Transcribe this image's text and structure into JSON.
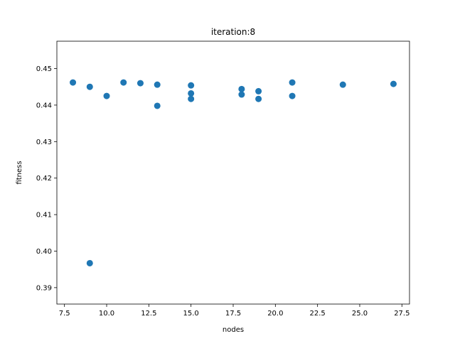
{
  "chart_data": {
    "type": "scatter",
    "title": "iteration:8",
    "xlabel": "nodes",
    "ylabel": "fitness",
    "xlim": [
      7.05,
      27.95
    ],
    "ylim": [
      0.3855,
      0.4575
    ],
    "xticks": [
      7.5,
      10.0,
      12.5,
      15.0,
      17.5,
      20.0,
      22.5,
      25.0,
      27.5
    ],
    "xtick_labels": [
      "7.5",
      "10.0",
      "12.5",
      "15.0",
      "17.5",
      "20.0",
      "22.5",
      "25.0",
      "27.5"
    ],
    "yticks": [
      0.39,
      0.4,
      0.41,
      0.42,
      0.43,
      0.44,
      0.45
    ],
    "ytick_labels": [
      "0.39",
      "0.40",
      "0.41",
      "0.42",
      "0.43",
      "0.44",
      "0.45"
    ],
    "grid": false,
    "color": "#1f77b4",
    "points": [
      {
        "x": 8,
        "y": 0.4462
      },
      {
        "x": 9,
        "y": 0.445
      },
      {
        "x": 9,
        "y": 0.3967
      },
      {
        "x": 10,
        "y": 0.4425
      },
      {
        "x": 11,
        "y": 0.4462
      },
      {
        "x": 12,
        "y": 0.446
      },
      {
        "x": 13,
        "y": 0.4456
      },
      {
        "x": 13,
        "y": 0.4398
      },
      {
        "x": 15,
        "y": 0.4454
      },
      {
        "x": 15,
        "y": 0.4432
      },
      {
        "x": 15,
        "y": 0.4417
      },
      {
        "x": 18,
        "y": 0.4444
      },
      {
        "x": 18,
        "y": 0.4429
      },
      {
        "x": 19,
        "y": 0.4438
      },
      {
        "x": 19,
        "y": 0.4417
      },
      {
        "x": 21,
        "y": 0.4462
      },
      {
        "x": 21,
        "y": 0.4425
      },
      {
        "x": 24,
        "y": 0.4456
      },
      {
        "x": 27,
        "y": 0.4458
      }
    ]
  }
}
